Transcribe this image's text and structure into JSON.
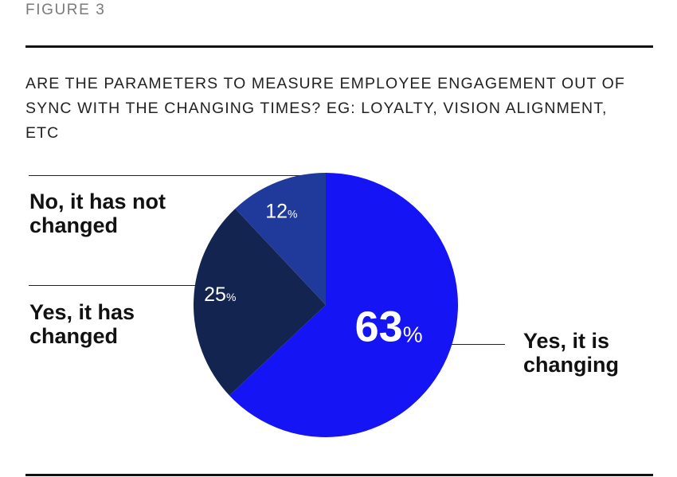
{
  "figure_label": "FIGURE 3",
  "question": "ARE THE PARAMETERS TO MEASURE EMPLOYEE ENGAGEMENT OUT OF SYNC WITH THE CHANGING TIMES? EG: LOYALTY, VISION ALIGNMENT, ETC",
  "chart_data": {
    "type": "pie",
    "title": "ARE THE PARAMETERS TO MEASURE EMPLOYEE ENGAGEMENT OUT OF SYNC WITH THE CHANGING TIMES? EG: LOYALTY, VISION ALIGNMENT, ETC",
    "unit": "%",
    "slices": [
      {
        "label": "Yes, it is changing",
        "value": 63,
        "color": "#1414f5",
        "data_label": "63"
      },
      {
        "label": "Yes, it has changed",
        "value": 25,
        "color": "#142450",
        "data_label": "25"
      },
      {
        "label": "No, it has not changed",
        "value": 12,
        "color": "#1f3a9a",
        "data_label": "12"
      }
    ],
    "legend": "none",
    "labels": "external with leader lines"
  }
}
